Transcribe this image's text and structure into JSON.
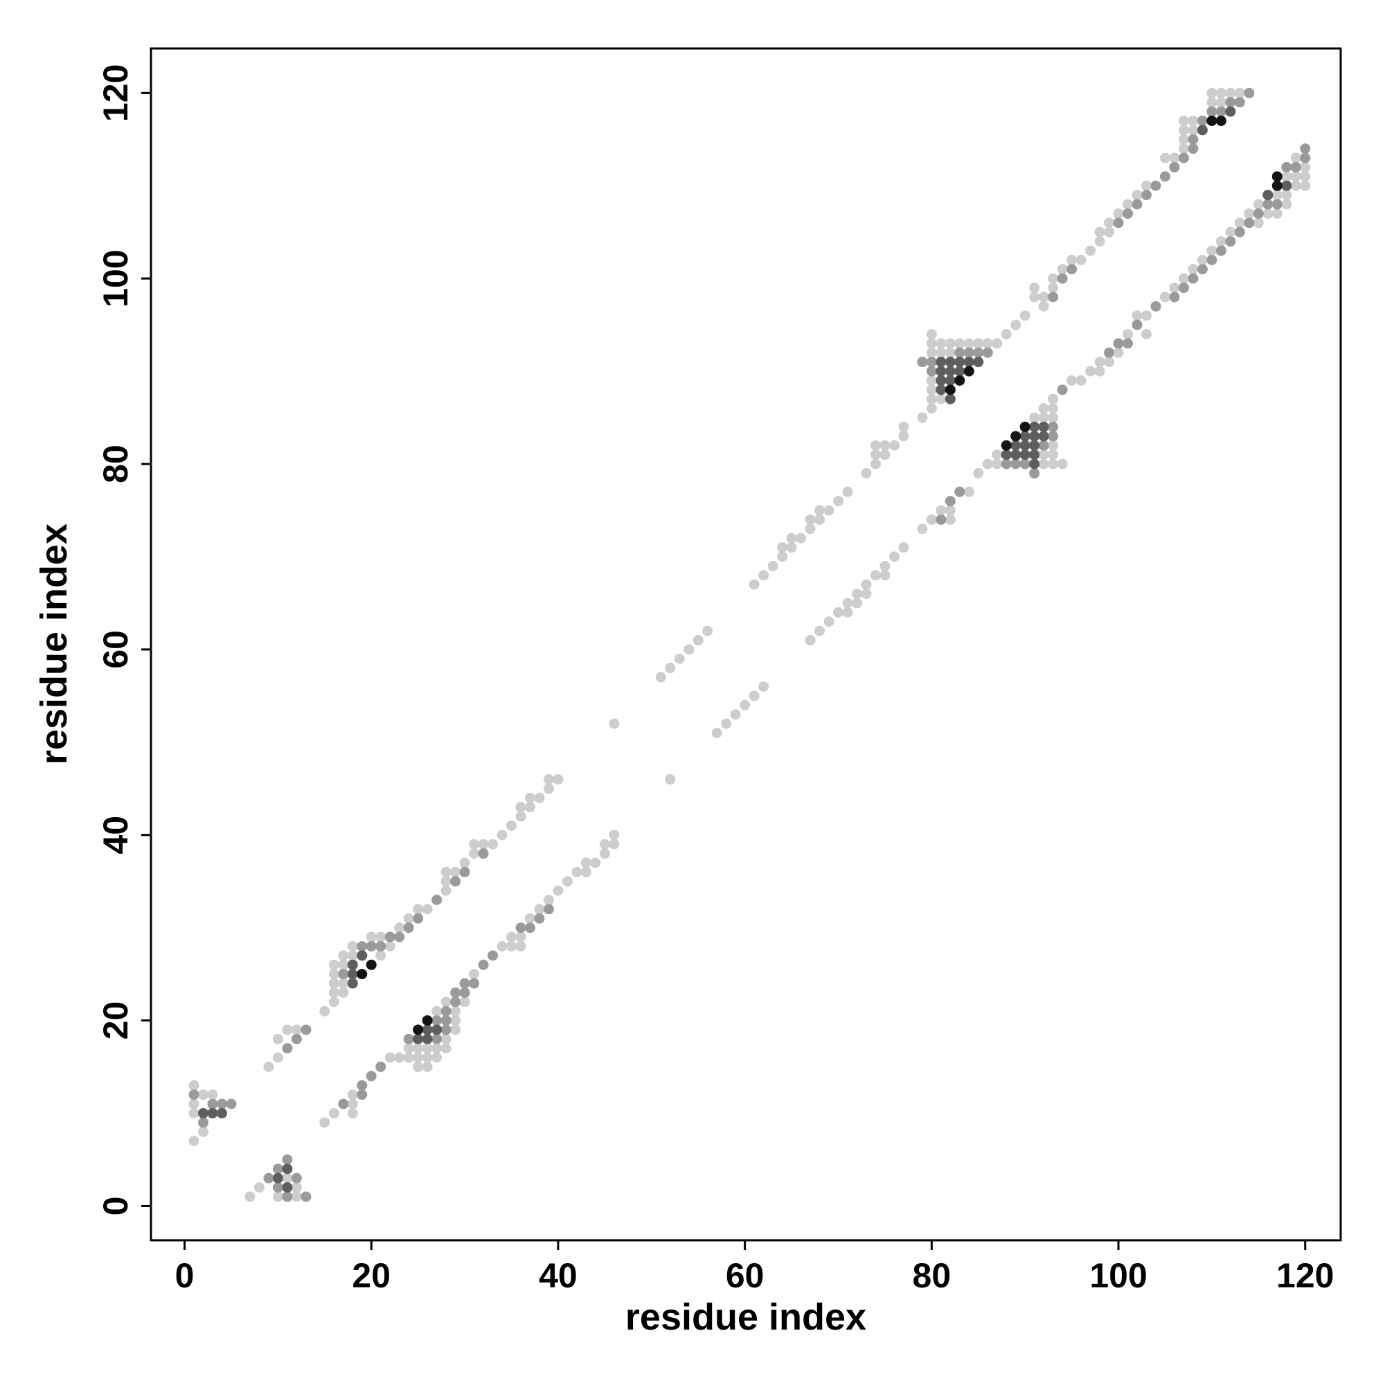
{
  "chart_data": {
    "type": "scatter",
    "xlabel": "residue index",
    "ylabel": "residue index",
    "xlim": [
      -3.6,
      123.8
    ],
    "ylim": [
      -3.7,
      124.8
    ],
    "xticks": [
      0,
      20,
      40,
      60,
      80,
      100,
      120
    ],
    "yticks": [
      0,
      20,
      40,
      60,
      80,
      100,
      120
    ],
    "series": [
      {
        "color": "#cdcdcd",
        "x": [
          1,
          1,
          1,
          1,
          2,
          2,
          3,
          9,
          10,
          10,
          11,
          12,
          15,
          16,
          16,
          16,
          16,
          16,
          17,
          17,
          17,
          17,
          18,
          18,
          20,
          21,
          21,
          22,
          23,
          24,
          25,
          26,
          28,
          28,
          28,
          29,
          30,
          31,
          31,
          32,
          33,
          34,
          35,
          36,
          36,
          37,
          37,
          38,
          39,
          39,
          40,
          46,
          51,
          52,
          53,
          54,
          55,
          56,
          61,
          62,
          63,
          64,
          64,
          65,
          65,
          66,
          67,
          67,
          68,
          68,
          69,
          70,
          71,
          73,
          74,
          74,
          74,
          75,
          75,
          76,
          77,
          77,
          79,
          80,
          80,
          80,
          80,
          80,
          80,
          80,
          81,
          81,
          81,
          82,
          82,
          83,
          84,
          85,
          86,
          87,
          88,
          89,
          90,
          91,
          91,
          92,
          92,
          93,
          93,
          94,
          95,
          96,
          97,
          98,
          98,
          99,
          99,
          100,
          101,
          102,
          103,
          105,
          106,
          107,
          107,
          107,
          107,
          108,
          108,
          110,
          110,
          111,
          111,
          112,
          113,
          7,
          8,
          10,
          11,
          12,
          12,
          15,
          16,
          18,
          18,
          18,
          22,
          23,
          24,
          24,
          25,
          25,
          25,
          26,
          26,
          26,
          27,
          27,
          27,
          28,
          28,
          28,
          29,
          29,
          29,
          30,
          31,
          34,
          35,
          35,
          36,
          36,
          37,
          38,
          39,
          40,
          41,
          42,
          43,
          43,
          44,
          45,
          45,
          46,
          46,
          52,
          57,
          58,
          59,
          60,
          61,
          62,
          67,
          68,
          69,
          70,
          71,
          71,
          72,
          72,
          73,
          73,
          74,
          75,
          75,
          76,
          77,
          79,
          80,
          81,
          82,
          82,
          84,
          85,
          86,
          87,
          87,
          91,
          92,
          92,
          92,
          92,
          93,
          93,
          93,
          93,
          93,
          93,
          94,
          95,
          96,
          97,
          98,
          98,
          99,
          100,
          101,
          102,
          103,
          103,
          105,
          106,
          107,
          108,
          109,
          110,
          111,
          112,
          113,
          114,
          115,
          115,
          116,
          117,
          117,
          118,
          118,
          118,
          119,
          119,
          119,
          120,
          120,
          120
        ],
        "values": [
          7,
          10,
          11,
          13,
          8,
          12,
          12,
          15,
          16,
          18,
          19,
          19,
          21,
          22,
          23,
          24,
          25,
          26,
          23,
          24,
          26,
          27,
          27,
          28,
          29,
          27,
          29,
          28,
          30,
          31,
          32,
          32,
          34,
          35,
          36,
          36,
          37,
          38,
          39,
          39,
          39,
          40,
          41,
          42,
          43,
          43,
          44,
          44,
          45,
          46,
          46,
          52,
          57,
          58,
          59,
          60,
          61,
          62,
          67,
          68,
          69,
          70,
          71,
          71,
          72,
          72,
          73,
          74,
          74,
          75,
          75,
          76,
          77,
          79,
          80,
          81,
          82,
          81,
          82,
          82,
          83,
          84,
          85,
          86,
          87,
          88,
          89,
          92,
          93,
          94,
          87,
          92,
          93,
          92,
          93,
          93,
          93,
          93,
          93,
          93,
          94,
          95,
          96,
          98,
          99,
          97,
          98,
          99,
          100,
          101,
          102,
          102,
          103,
          104,
          105,
          105,
          106,
          107,
          108,
          109,
          110,
          113,
          113,
          114,
          115,
          116,
          117,
          116,
          117,
          119,
          120,
          119,
          120,
          120,
          120,
          1,
          2,
          1,
          3,
          1,
          2,
          9,
          10,
          10,
          11,
          12,
          16,
          16,
          16,
          17,
          15,
          16,
          17,
          15,
          16,
          17,
          16,
          17,
          21,
          17,
          18,
          22,
          19,
          20,
          21,
          22,
          25,
          28,
          28,
          29,
          28,
          29,
          31,
          32,
          33,
          34,
          35,
          36,
          36,
          37,
          37,
          38,
          39,
          39,
          40,
          46,
          51,
          52,
          53,
          54,
          55,
          56,
          61,
          62,
          63,
          64,
          64,
          65,
          65,
          66,
          66,
          67,
          68,
          68,
          69,
          70,
          71,
          73,
          74,
          75,
          74,
          75,
          77,
          79,
          80,
          80,
          81,
          85,
          80,
          81,
          85,
          86,
          80,
          81,
          82,
          85,
          86,
          87,
          80,
          89,
          89,
          90,
          90,
          91,
          91,
          92,
          94,
          96,
          94,
          96,
          98,
          99,
          100,
          101,
          102,
          103,
          104,
          105,
          106,
          107,
          106,
          108,
          107,
          107,
          109,
          108,
          109,
          111,
          110,
          111,
          113,
          110,
          111,
          112
        ]
      },
      {
        "color": "#9a9a9a",
        "x": [
          1,
          2,
          3,
          4,
          5,
          11,
          12,
          13,
          17,
          19,
          20,
          21,
          22,
          23,
          24,
          25,
          27,
          29,
          30,
          32,
          79,
          80,
          80,
          83,
          84,
          85,
          86,
          93,
          94,
          95,
          100,
          101,
          102,
          103,
          104,
          105,
          106,
          107,
          108,
          108,
          109,
          110,
          111,
          112,
          113,
          114,
          9,
          10,
          10,
          11,
          11,
          12,
          13,
          17,
          19,
          19,
          20,
          21,
          24,
          27,
          27,
          28,
          28,
          28,
          29,
          29,
          30,
          30,
          31,
          32,
          33,
          36,
          37,
          38,
          39,
          81,
          82,
          83,
          88,
          89,
          90,
          91,
          92,
          93,
          93,
          94,
          99,
          100,
          101,
          102,
          104,
          106,
          107,
          108,
          109,
          110,
          111,
          112,
          113,
          114,
          115,
          116,
          117,
          118,
          119,
          120,
          120
        ],
        "values": [
          12,
          9,
          11,
          11,
          11,
          17,
          18,
          19,
          25,
          28,
          28,
          28,
          29,
          29,
          30,
          31,
          33,
          35,
          36,
          38,
          91,
          90,
          91,
          92,
          92,
          92,
          92,
          98,
          100,
          101,
          106,
          107,
          108,
          109,
          110,
          111,
          112,
          113,
          114,
          115,
          117,
          118,
          118,
          119,
          119,
          120,
          3,
          2,
          4,
          1,
          5,
          3,
          1,
          11,
          12,
          13,
          14,
          15,
          18,
          18,
          20,
          19,
          20,
          21,
          22,
          23,
          23,
          24,
          24,
          26,
          27,
          30,
          30,
          31,
          32,
          74,
          76,
          77,
          80,
          80,
          80,
          79,
          82,
          83,
          84,
          88,
          92,
          93,
          93,
          95,
          97,
          98,
          99,
          100,
          101,
          102,
          103,
          104,
          105,
          106,
          107,
          108,
          108,
          112,
          112,
          113,
          114
        ]
      },
      {
        "color": "#5e5e5e",
        "x": [
          2,
          3,
          4,
          10,
          11,
          11,
          18,
          18,
          18,
          19,
          25,
          26,
          26,
          27,
          81,
          81,
          81,
          81,
          82,
          82,
          82,
          82,
          83,
          83,
          84,
          85,
          88,
          89,
          89,
          90,
          90,
          90,
          91,
          91,
          91,
          91,
          91,
          92,
          92,
          109,
          112,
          116,
          118
        ],
        "values": [
          10,
          10,
          10,
          3,
          2,
          4,
          24,
          25,
          26,
          27,
          18,
          18,
          19,
          19,
          88,
          89,
          90,
          91,
          87,
          89,
          90,
          91,
          90,
          91,
          91,
          91,
          81,
          81,
          82,
          81,
          82,
          83,
          80,
          81,
          82,
          83,
          84,
          83,
          84,
          116,
          118,
          109,
          110
        ]
      },
      {
        "color": "#141414",
        "x": [
          19,
          20,
          25,
          26,
          82,
          83,
          84,
          88,
          89,
          90,
          110,
          111,
          117,
          117
        ],
        "values": [
          25,
          26,
          19,
          20,
          88,
          89,
          90,
          82,
          83,
          84,
          117,
          117,
          110,
          111
        ]
      }
    ]
  }
}
